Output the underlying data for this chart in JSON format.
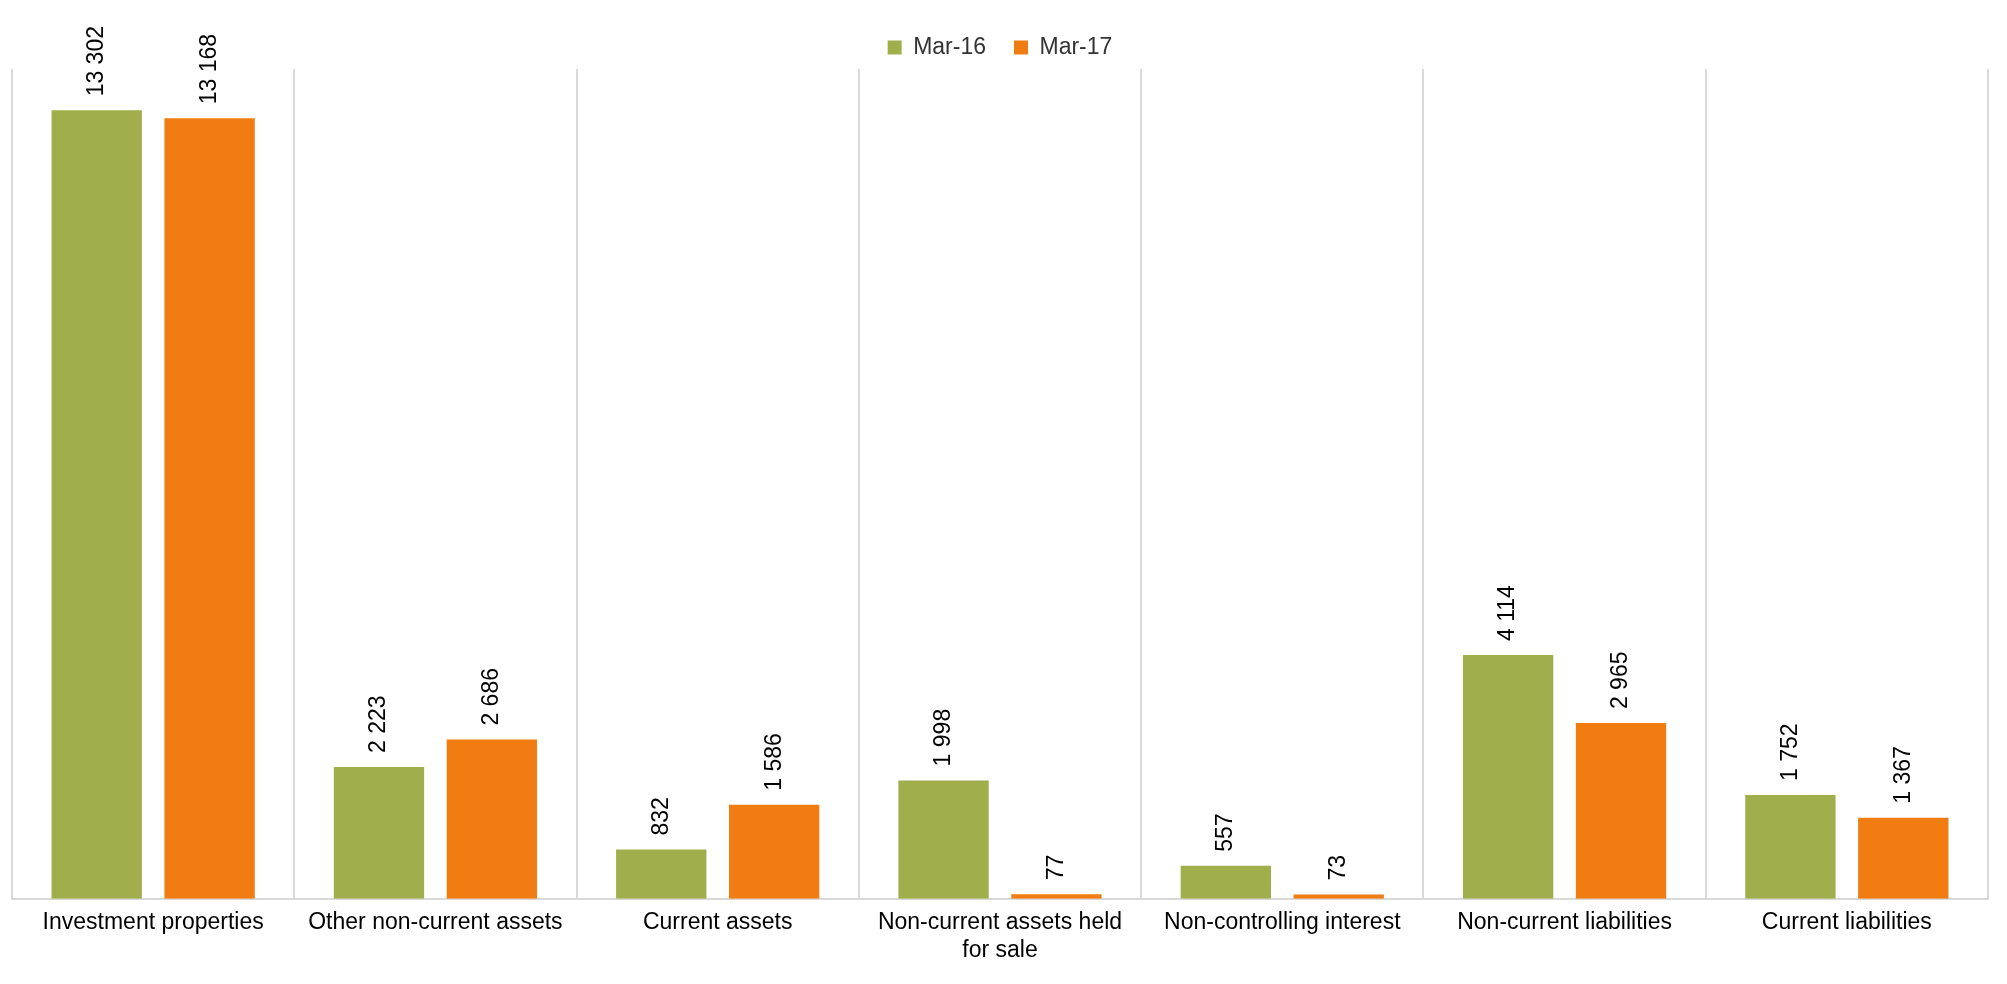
{
  "chart_data": {
    "type": "bar",
    "categories": [
      "Investment properties",
      "Other non-current assets",
      "Current assets",
      "Non-current assets held for sale",
      "Non-controlling interest",
      "Non-current liabilities",
      "Current liabilities"
    ],
    "series": [
      {
        "name": "Mar-16",
        "color": "#a0ae4c",
        "values": [
          13302,
          2223,
          832,
          1998,
          557,
          4114,
          1752
        ],
        "value_labels": [
          "13 302",
          "2 223",
          "832",
          "1 998",
          "557",
          "4 114",
          "1 752"
        ]
      },
      {
        "name": "Mar-17",
        "color": "#f07c12",
        "values": [
          13168,
          2686,
          1586,
          77,
          73,
          2965,
          1367
        ],
        "value_labels": [
          "13 168",
          "2 686",
          "1 586",
          "77",
          "73",
          "2 965",
          "1 367"
        ]
      }
    ],
    "ylim": [
      0,
      14000
    ],
    "tick_labels": "x",
    "grid": "x",
    "legend": "top"
  }
}
